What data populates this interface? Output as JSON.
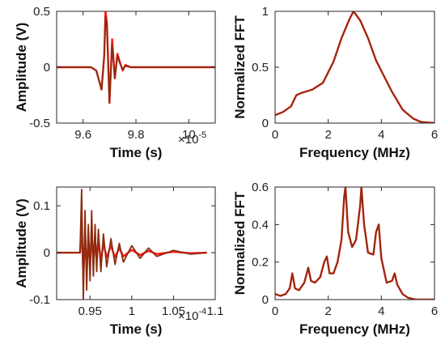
{
  "colors": {
    "series_a": "#ff1414",
    "series_b": "#8b2d10",
    "axis": "#262626"
  },
  "chart_data": [
    {
      "type": "line",
      "xlabel": "Time (s)",
      "ylabel": "Amplitude (V)",
      "x_multiplier": "×10",
      "x_exponent": "-5",
      "xlim": [
        9.5,
        10.1
      ],
      "ylim": [
        -0.5,
        0.5
      ],
      "xticks": [
        9.6,
        9.8,
        10
      ],
      "xtick_labels": [
        "9.6",
        "9.8",
        "10"
      ],
      "yticks": [
        -0.5,
        0,
        0.5
      ],
      "ytick_labels": [
        "-0.5",
        "0",
        "0.5"
      ],
      "series": [
        {
          "x": [
            9.5,
            9.63,
            9.65,
            9.67,
            9.68,
            9.685,
            9.69,
            9.7,
            9.71,
            9.72,
            9.73,
            9.74,
            9.75,
            9.76,
            9.78,
            9.8,
            10.1
          ],
          "values": [
            0,
            0,
            -0.03,
            -0.2,
            0.1,
            0.5,
            0.4,
            -0.32,
            0.25,
            -0.1,
            0.12,
            0.04,
            -0.03,
            0.02,
            0,
            0,
            0
          ]
        },
        {
          "x": [
            9.5,
            9.63,
            9.65,
            9.67,
            9.68,
            9.685,
            9.69,
            9.7,
            9.71,
            9.72,
            9.73,
            9.74,
            9.75,
            9.76,
            9.78,
            9.8,
            10.1
          ],
          "values": [
            0,
            0,
            -0.03,
            -0.2,
            0.1,
            0.45,
            0.38,
            -0.32,
            0.2,
            -0.1,
            0.1,
            0.03,
            -0.02,
            0.01,
            0,
            0,
            0
          ]
        }
      ]
    },
    {
      "type": "line",
      "xlabel": "Frequency (MHz)",
      "ylabel": "Normalized FFT",
      "xlim": [
        0,
        6
      ],
      "ylim": [
        0,
        1
      ],
      "xticks": [
        0,
        2,
        4,
        6
      ],
      "xtick_labels": [
        "0",
        "2",
        "4",
        "6"
      ],
      "yticks": [
        0,
        0.5,
        1
      ],
      "ytick_labels": [
        "0",
        "0.5",
        "1"
      ],
      "series": [
        {
          "x": [
            0,
            0.3,
            0.6,
            0.8,
            1.0,
            1.4,
            1.8,
            2.2,
            2.5,
            2.8,
            2.95,
            3.2,
            3.5,
            3.8,
            4.1,
            4.4,
            4.8,
            5.2,
            5.5,
            6.0
          ],
          "values": [
            0.07,
            0.1,
            0.15,
            0.25,
            0.27,
            0.3,
            0.36,
            0.55,
            0.76,
            0.93,
            1.0,
            0.92,
            0.76,
            0.56,
            0.42,
            0.28,
            0.12,
            0.04,
            0.01,
            0
          ]
        },
        {
          "x": [
            0,
            0.3,
            0.6,
            0.8,
            1.0,
            1.4,
            1.8,
            2.2,
            2.5,
            2.8,
            2.95,
            3.2,
            3.5,
            3.8,
            4.1,
            4.4,
            4.8,
            5.2,
            5.5,
            6.0
          ],
          "values": [
            0.07,
            0.1,
            0.15,
            0.25,
            0.27,
            0.3,
            0.36,
            0.55,
            0.76,
            0.93,
            1.0,
            0.92,
            0.76,
            0.56,
            0.42,
            0.28,
            0.12,
            0.04,
            0.01,
            0
          ]
        }
      ]
    },
    {
      "type": "line",
      "xlabel": "Time (s)",
      "ylabel": "Amplitude (V)",
      "x_multiplier": "×10",
      "x_exponent": "-4",
      "xlim": [
        0.91,
        1.1
      ],
      "ylim": [
        -0.1,
        0.14
      ],
      "xticks": [
        0.95,
        1.0,
        1.05,
        1.1
      ],
      "xtick_labels": [
        "0.95",
        "1",
        "1.05",
        "1.1"
      ],
      "yticks": [
        -0.1,
        0,
        0.1
      ],
      "ytick_labels": [
        "-0.1",
        "0",
        "0.1"
      ],
      "series": [
        {
          "x": [
            0.91,
            0.938,
            0.94,
            0.942,
            0.944,
            0.946,
            0.948,
            0.95,
            0.952,
            0.954,
            0.956,
            0.958,
            0.96,
            0.963,
            0.966,
            0.97,
            0.975,
            0.98,
            0.985,
            0.99,
            1.0,
            1.01,
            1.02,
            1.03,
            1.05,
            1.07,
            1.09
          ],
          "values": [
            0,
            0,
            0.06,
            -0.05,
            0.04,
            -0.04,
            0.03,
            -0.03,
            0.05,
            -0.02,
            0.03,
            -0.02,
            0.03,
            -0.02,
            0.02,
            -0.01,
            0.015,
            -0.01,
            0.01,
            -0.008,
            0.006,
            -0.005,
            0.004,
            -0.003,
            0.002,
            -0.001,
            0
          ]
        },
        {
          "x": [
            0.91,
            0.938,
            0.94,
            0.942,
            0.944,
            0.946,
            0.948,
            0.95,
            0.952,
            0.954,
            0.956,
            0.958,
            0.96,
            0.963,
            0.966,
            0.97,
            0.975,
            0.98,
            0.985,
            0.99,
            1.0,
            1.01,
            1.02,
            1.03,
            1.05,
            1.07,
            1.09
          ],
          "values": [
            0,
            0,
            0.135,
            -0.1,
            0.09,
            -0.08,
            0.06,
            -0.06,
            0.09,
            -0.05,
            0.06,
            -0.04,
            0.05,
            -0.04,
            0.04,
            -0.03,
            0.03,
            -0.025,
            0.02,
            -0.02,
            0.015,
            -0.012,
            0.01,
            -0.008,
            0.005,
            -0.003,
            0
          ]
        }
      ]
    },
    {
      "type": "line",
      "xlabel": "Frequency (MHz)",
      "ylabel": "Normalized FFT",
      "xlim": [
        0,
        6
      ],
      "ylim": [
        0,
        0.6
      ],
      "xticks": [
        0,
        2,
        4,
        6
      ],
      "xtick_labels": [
        "0",
        "2",
        "4",
        "6"
      ],
      "yticks": [
        0,
        0.2,
        0.4,
        0.6
      ],
      "ytick_labels": [
        "0",
        "0.2",
        "0.4",
        "0.6"
      ],
      "series": [
        {
          "x": [
            0,
            0.2,
            0.4,
            0.55,
            0.65,
            0.75,
            0.9,
            1.1,
            1.25,
            1.35,
            1.5,
            1.7,
            1.85,
            1.95,
            2.05,
            2.2,
            2.35,
            2.5,
            2.6,
            2.65,
            2.75,
            2.9,
            3.05,
            3.2,
            3.25,
            3.35,
            3.5,
            3.7,
            3.8,
            3.9,
            4.0,
            4.2,
            4.4,
            4.5,
            4.6,
            4.8,
            5.0,
            5.3,
            5.6,
            6.0
          ],
          "values": [
            0.03,
            0.02,
            0.03,
            0.06,
            0.14,
            0.06,
            0.05,
            0.09,
            0.17,
            0.1,
            0.09,
            0.12,
            0.2,
            0.23,
            0.14,
            0.14,
            0.2,
            0.32,
            0.55,
            0.6,
            0.36,
            0.28,
            0.32,
            0.5,
            0.6,
            0.4,
            0.25,
            0.24,
            0.36,
            0.4,
            0.22,
            0.09,
            0.1,
            0.14,
            0.08,
            0.03,
            0.01,
            0,
            0,
            0
          ]
        },
        {
          "x": [
            0,
            0.2,
            0.4,
            0.55,
            0.65,
            0.75,
            0.9,
            1.1,
            1.25,
            1.35,
            1.5,
            1.7,
            1.85,
            1.95,
            2.05,
            2.2,
            2.35,
            2.5,
            2.6,
            2.65,
            2.75,
            2.9,
            3.05,
            3.2,
            3.25,
            3.35,
            3.5,
            3.7,
            3.8,
            3.9,
            4.0,
            4.2,
            4.4,
            4.5,
            4.6,
            4.8,
            5.0,
            5.3,
            5.6,
            6.0
          ],
          "values": [
            0.03,
            0.02,
            0.03,
            0.06,
            0.14,
            0.06,
            0.05,
            0.09,
            0.17,
            0.1,
            0.09,
            0.12,
            0.2,
            0.23,
            0.14,
            0.14,
            0.2,
            0.32,
            0.55,
            0.6,
            0.36,
            0.28,
            0.32,
            0.5,
            0.6,
            0.4,
            0.25,
            0.24,
            0.36,
            0.4,
            0.22,
            0.09,
            0.1,
            0.14,
            0.08,
            0.03,
            0.01,
            0,
            0,
            0
          ]
        }
      ]
    }
  ]
}
